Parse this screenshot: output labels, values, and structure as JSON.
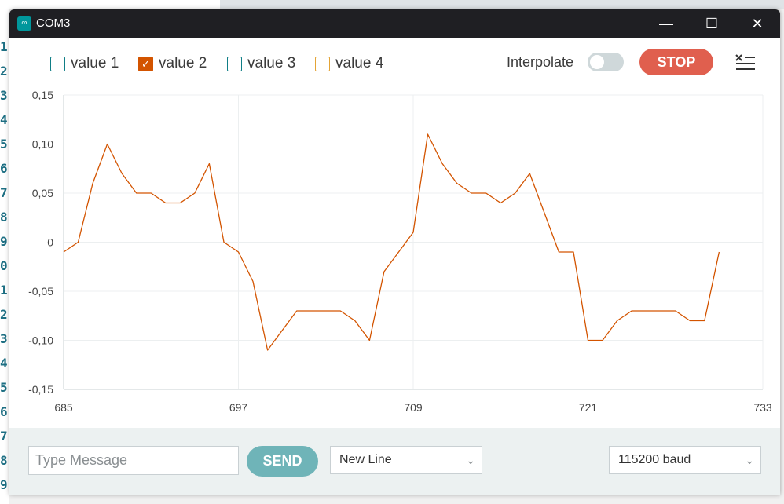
{
  "window": {
    "title": "COM3"
  },
  "legend": [
    {
      "label": "value 1",
      "checked": false
    },
    {
      "label": "value 2",
      "checked": true
    },
    {
      "label": "value 3",
      "checked": false
    },
    {
      "label": "value 4",
      "checked": false
    }
  ],
  "toolbar": {
    "interpolate_label": "Interpolate",
    "interpolate_on": false,
    "stop_label": "STOP"
  },
  "footer": {
    "message_placeholder": "Type Message",
    "send_label": "SEND",
    "line_ending": "New Line",
    "baud": "115200 baud"
  },
  "colors": {
    "accent": "#d35400",
    "stop": "#e05f4e",
    "send": "#6fb4b8",
    "teal": "#0f7e86"
  },
  "icons": {
    "clear": "clear-output-icon",
    "app": "arduino-icon"
  },
  "chart_data": {
    "type": "line",
    "xlim": [
      685,
      733
    ],
    "ylim": [
      -0.15,
      0.15
    ],
    "x_ticks": [
      685,
      697,
      709,
      721,
      733
    ],
    "y_ticks": [
      "0,15",
      "0,10",
      "0,05",
      "0",
      "-0,05",
      "-0,10",
      "-0,15"
    ],
    "series": [
      {
        "name": "value 2",
        "color": "#d35400",
        "x": [
          685,
          686,
          687,
          688,
          689,
          690,
          691,
          692,
          693,
          694,
          695,
          696,
          697,
          698,
          699,
          700,
          701,
          702,
          703,
          704,
          705,
          706,
          707,
          708,
          709,
          710,
          711,
          712,
          713,
          714,
          715,
          716,
          717,
          718,
          719,
          720,
          721,
          722,
          723,
          724,
          725,
          726,
          727,
          728,
          729,
          730
        ],
        "values": [
          -0.01,
          0,
          0.06,
          0.1,
          0.07,
          0.05,
          0.05,
          0.04,
          0.04,
          0.05,
          0.08,
          0,
          -0.01,
          -0.04,
          -0.11,
          -0.09,
          -0.07,
          -0.07,
          -0.07,
          -0.07,
          -0.08,
          -0.1,
          -0.03,
          -0.01,
          0.01,
          0.11,
          0.08,
          0.06,
          0.05,
          0.05,
          0.04,
          0.05,
          0.07,
          0.03,
          -0.01,
          -0.01,
          -0.1,
          -0.1,
          -0.08,
          -0.07,
          -0.07,
          -0.07,
          -0.07,
          -0.08,
          -0.08,
          -0.01
        ]
      }
    ]
  }
}
